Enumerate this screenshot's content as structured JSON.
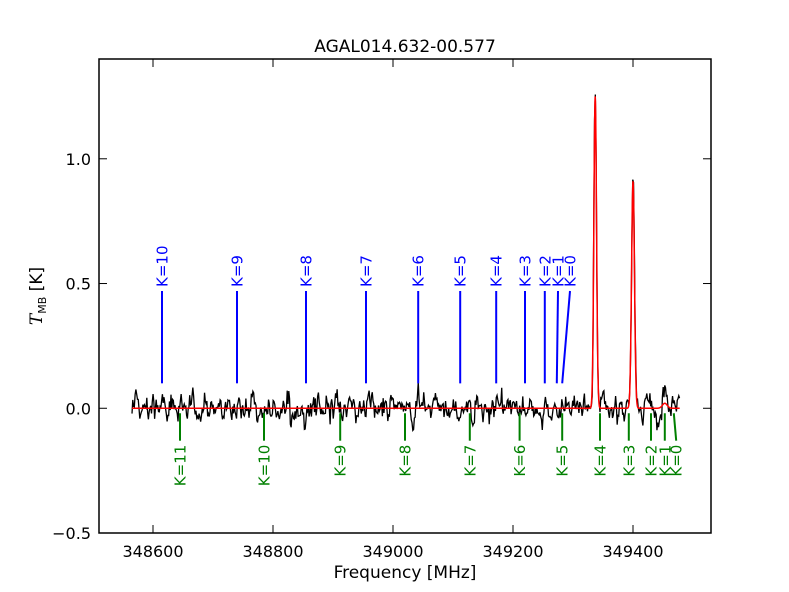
{
  "chart_data": {
    "type": "line",
    "title": "AGAL014.632-00.577",
    "xlabel": "Frequency [MHz]",
    "ylabel_main": "T",
    "ylabel_sub": "MB",
    "ylabel_unit": "[K]",
    "xlim": [
      348510,
      349530
    ],
    "ylim": [
      -0.5,
      1.4
    ],
    "xticks": [
      348600,
      348800,
      349000,
      349200,
      349400
    ],
    "yticks": [
      -0.5,
      0.0,
      0.5,
      1.0
    ],
    "ytick_labels": [
      "−0.5",
      "0.0",
      "0.5",
      "1.0"
    ],
    "grid": false,
    "spectrum_x_range": [
      348565,
      349478
    ],
    "spectrum_noise_rms": 0.04,
    "fit": {
      "color": "#ff0000",
      "x_range": [
        348565,
        349478
      ],
      "peaks": [
        {
          "center": 349337,
          "amplitude": 1.25,
          "width": 2.2
        },
        {
          "center": 349400,
          "amplitude": 0.91,
          "width": 2.4
        },
        {
          "center": 349453,
          "amplitude": 0.02,
          "width": 4.0
        }
      ]
    },
    "series": [
      {
        "color": "#0000ff",
        "labels": [
          "K=10",
          "K=9",
          "K=8",
          "K=7",
          "K=6",
          "K=5",
          "K=4",
          "K=3",
          "K=2",
          "K=1",
          "K=0"
        ],
        "line_x": [
          348615,
          348740,
          348855,
          348955,
          349042,
          349112,
          349172,
          349220,
          349253,
          349273,
          349282
        ],
        "text_x": [
          348615,
          348740,
          348855,
          348955,
          349042,
          349112,
          349172,
          349220,
          349253,
          349275,
          349295
        ],
        "y_top": 0.47,
        "y_bottom": 0.1
      },
      {
        "color": "#008000",
        "labels": [
          "K=11",
          "K=10",
          "K=9",
          "K=8",
          "K=7",
          "K=6",
          "K=5",
          "K=4",
          "K=3",
          "K=2",
          "K=1",
          "K=0"
        ],
        "line_x": [
          348645,
          348785,
          348912,
          349020,
          349128,
          349211,
          349282,
          349345,
          349393,
          349430,
          349453,
          349468
        ],
        "text_x": [
          348645,
          348785,
          348912,
          349020,
          349128,
          349211,
          349282,
          349345,
          349393,
          349430,
          349453,
          349472
        ],
        "y_top": -0.02,
        "y_bottom": -0.13
      }
    ]
  }
}
